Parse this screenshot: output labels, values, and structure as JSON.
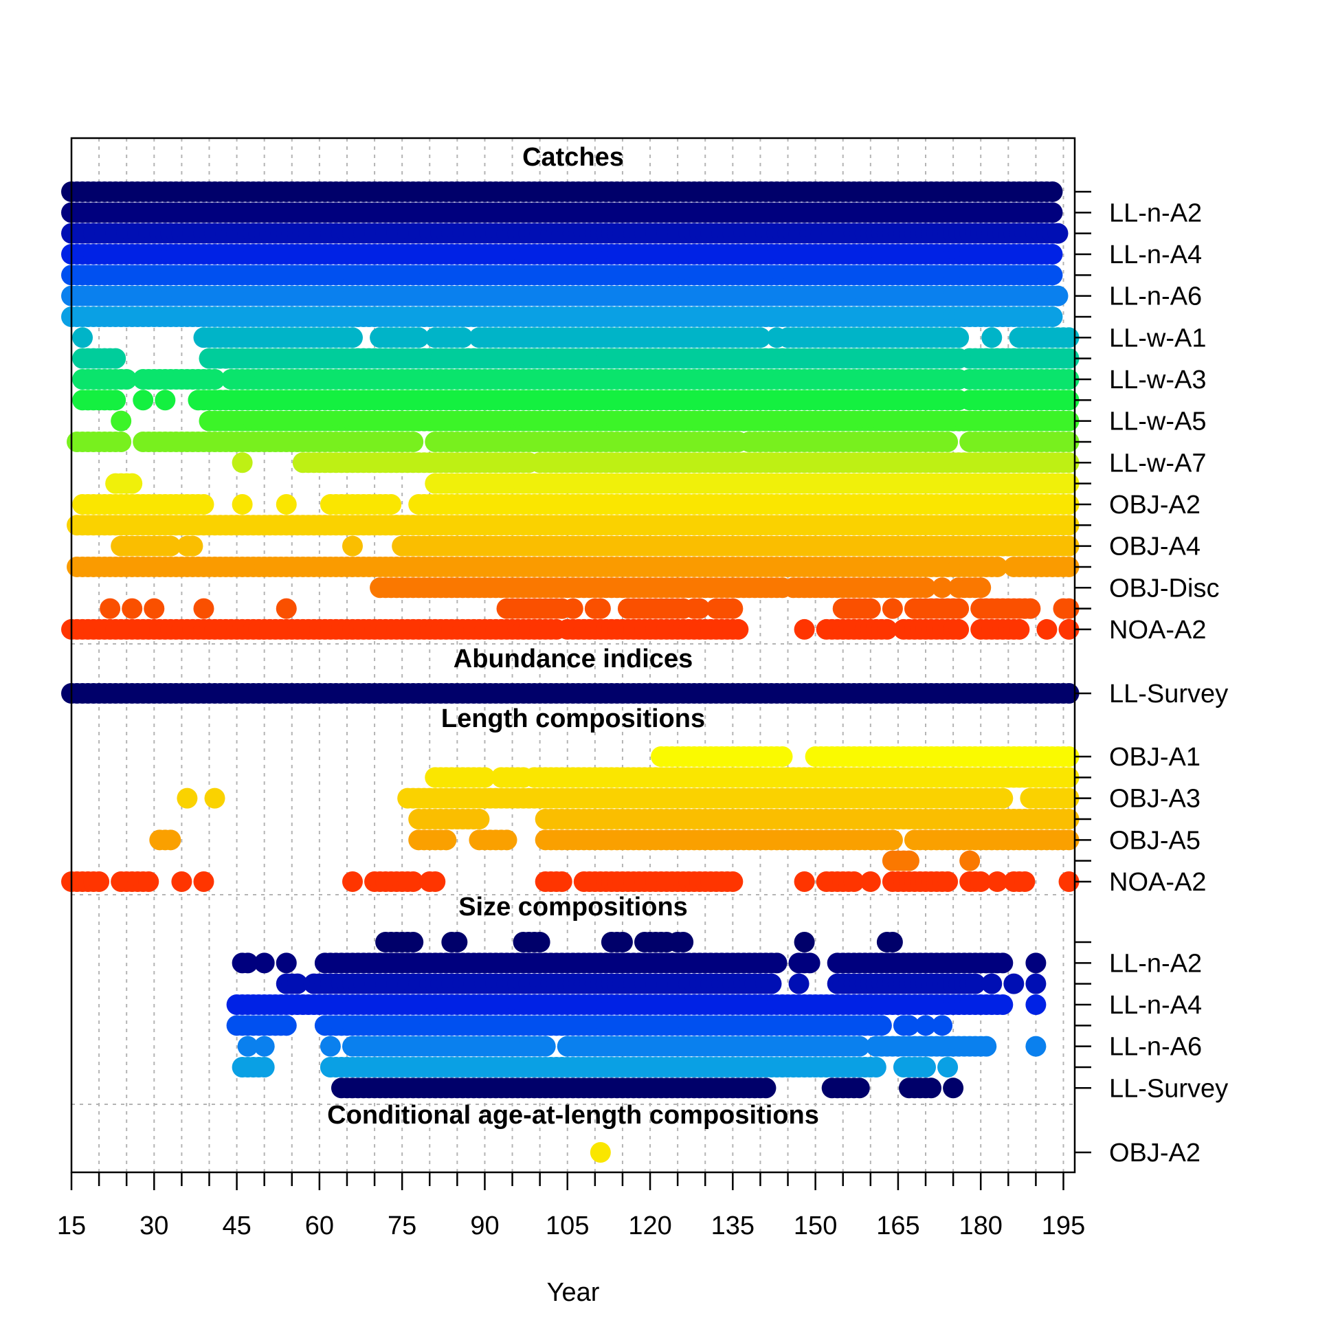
{
  "chart_data": {
    "type": "scatter",
    "xlabel": "Year",
    "xlim": [
      15,
      196
    ],
    "x_ticks": [
      15,
      30,
      45,
      60,
      75,
      90,
      105,
      120,
      135,
      150,
      165,
      180,
      195
    ],
    "sections": [
      {
        "title": "Catches",
        "rows": [
          {
            "label": "",
            "color": "#00006a",
            "ranges": [
              [
                15,
                193
              ]
            ]
          },
          {
            "label": "LL-n-A2",
            "color": "#00007e",
            "ranges": [
              [
                15,
                193
              ]
            ]
          },
          {
            "label": "",
            "color": "#000fb4",
            "ranges": [
              [
                15,
                194
              ]
            ]
          },
          {
            "label": "LL-n-A4",
            "color": "#0022e5",
            "ranges": [
              [
                15,
                193
              ]
            ]
          },
          {
            "label": "",
            "color": "#0050f0",
            "ranges": [
              [
                15,
                193
              ]
            ]
          },
          {
            "label": "LL-n-A6",
            "color": "#0a80ee",
            "ranges": [
              [
                15,
                194
              ]
            ]
          },
          {
            "label": "",
            "color": "#0aa0e4",
            "ranges": [
              [
                15,
                193
              ]
            ]
          },
          {
            "label": "LL-w-A1",
            "color": "#00b4c8",
            "ranges": [
              [
                17,
                17
              ],
              [
                39,
                66
              ],
              [
                71,
                78
              ],
              [
                81,
                86
              ],
              [
                89,
                140
              ],
              [
                143,
                143
              ],
              [
                145,
                176
              ],
              [
                182,
                182
              ],
              [
                187,
                196
              ]
            ]
          },
          {
            "label": "",
            "color": "#00cd9b",
            "ranges": [
              [
                17,
                23
              ],
              [
                40,
                176
              ],
              [
                178,
                196
              ]
            ]
          },
          {
            "label": "LL-w-A3",
            "color": "#0ae46c",
            "ranges": [
              [
                17,
                25
              ],
              [
                28,
                41
              ],
              [
                44,
                176
              ],
              [
                178,
                196
              ]
            ]
          },
          {
            "label": "",
            "color": "#14f040",
            "ranges": [
              [
                17,
                23
              ],
              [
                28,
                28
              ],
              [
                32,
                32
              ],
              [
                38,
                176
              ],
              [
                178,
                196
              ]
            ]
          },
          {
            "label": "LL-w-A5",
            "color": "#3cf428",
            "ranges": [
              [
                24,
                24
              ],
              [
                40,
                196
              ]
            ]
          },
          {
            "label": "",
            "color": "#78f01e",
            "ranges": [
              [
                16,
                24
              ],
              [
                28,
                77
              ],
              [
                81,
                136
              ],
              [
                138,
                174
              ],
              [
                178,
                196
              ]
            ]
          },
          {
            "label": "LL-w-A7",
            "color": "#bef014",
            "ranges": [
              [
                46,
                46
              ],
              [
                57,
                98
              ],
              [
                100,
                196
              ]
            ]
          },
          {
            "label": "",
            "color": "#f0f00a",
            "ranges": [
              [
                23,
                26
              ],
              [
                81,
                196
              ]
            ]
          },
          {
            "label": "OBJ-A2",
            "color": "#fae600",
            "ranges": [
              [
                17,
                39
              ],
              [
                46,
                46
              ],
              [
                54,
                54
              ],
              [
                62,
                73
              ],
              [
                78,
                196
              ]
            ]
          },
          {
            "label": "",
            "color": "#fad200",
            "ranges": [
              [
                16,
                196
              ]
            ]
          },
          {
            "label": "OBJ-A4",
            "color": "#fabe00",
            "ranges": [
              [
                24,
                33
              ],
              [
                36,
                37
              ],
              [
                66,
                66
              ],
              [
                75,
                196
              ]
            ]
          },
          {
            "label": "",
            "color": "#fa9b00",
            "ranges": [
              [
                16,
                183
              ],
              [
                186,
                196
              ]
            ]
          },
          {
            "label": "OBJ-Disc",
            "color": "#fa7800",
            "ranges": [
              [
                71,
                144
              ],
              [
                146,
                170
              ],
              [
                173,
                173
              ],
              [
                176,
                180
              ]
            ]
          },
          {
            "label": "",
            "color": "#fa5000",
            "ranges": [
              [
                22,
                22
              ],
              [
                26,
                26
              ],
              [
                30,
                30
              ],
              [
                39,
                39
              ],
              [
                54,
                54
              ],
              [
                94,
                104
              ],
              [
                106,
                106
              ],
              [
                110,
                111
              ],
              [
                116,
                126
              ],
              [
                128,
                129
              ],
              [
                132,
                135
              ],
              [
                155,
                160
              ],
              [
                164,
                164
              ],
              [
                168,
                176
              ],
              [
                180,
                189
              ],
              [
                195,
                196
              ]
            ]
          },
          {
            "label": "NOA-A2",
            "color": "#ff3500",
            "ranges": [
              [
                15,
                103
              ],
              [
                105,
                136
              ],
              [
                148,
                148
              ],
              [
                152,
                163
              ],
              [
                166,
                176
              ],
              [
                180,
                187
              ],
              [
                192,
                192
              ],
              [
                196,
                196
              ]
            ]
          }
        ]
      },
      {
        "title": "Abundance indices",
        "rows": [
          {
            "label": "LL-Survey",
            "color": "#00006a",
            "ranges": [
              [
                15,
                196
              ]
            ]
          }
        ]
      },
      {
        "title": "Length compositions",
        "rows": [
          {
            "label": "OBJ-A1",
            "color": "#fafa00",
            "ranges": [
              [
                122,
                144
              ],
              [
                150,
                196
              ]
            ]
          },
          {
            "label": "",
            "color": "#fae600",
            "ranges": [
              [
                81,
                90
              ],
              [
                93,
                97
              ],
              [
                99,
                196
              ]
            ]
          },
          {
            "label": "OBJ-A3",
            "color": "#fad200",
            "ranges": [
              [
                36,
                36
              ],
              [
                41,
                41
              ],
              [
                76,
                184
              ],
              [
                189,
                196
              ]
            ]
          },
          {
            "label": "",
            "color": "#fabe00",
            "ranges": [
              [
                78,
                89
              ],
              [
                101,
                196
              ]
            ]
          },
          {
            "label": "OBJ-A5",
            "color": "#faa000",
            "ranges": [
              [
                31,
                33
              ],
              [
                78,
                83
              ],
              [
                89,
                94
              ],
              [
                101,
                164
              ],
              [
                168,
                196
              ]
            ]
          },
          {
            "label": "",
            "color": "#fa7800",
            "ranges": [
              [
                164,
                167
              ],
              [
                178,
                178
              ]
            ]
          },
          {
            "label": "NOA-A2",
            "color": "#ff3500",
            "ranges": [
              [
                15,
                20
              ],
              [
                24,
                29
              ],
              [
                35,
                35
              ],
              [
                39,
                39
              ],
              [
                66,
                66
              ],
              [
                70,
                77
              ],
              [
                80,
                81
              ],
              [
                101,
                104
              ],
              [
                108,
                135
              ],
              [
                148,
                148
              ],
              [
                152,
                157
              ],
              [
                160,
                160
              ],
              [
                164,
                174
              ],
              [
                178,
                180
              ],
              [
                183,
                183
              ],
              [
                186,
                188
              ],
              [
                196,
                196
              ]
            ]
          }
        ]
      },
      {
        "title": "Size compositions",
        "rows": [
          {
            "label": "",
            "color": "#00006a",
            "ranges": [
              [
                72,
                77
              ],
              [
                84,
                85
              ],
              [
                97,
                100
              ],
              [
                113,
                115
              ],
              [
                119,
                123
              ],
              [
                125,
                126
              ],
              [
                148,
                148
              ],
              [
                163,
                164
              ]
            ]
          },
          {
            "label": "LL-n-A2",
            "color": "#00007e",
            "ranges": [
              [
                46,
                47
              ],
              [
                50,
                50
              ],
              [
                54,
                54
              ],
              [
                61,
                143
              ],
              [
                147,
                149
              ],
              [
                154,
                184
              ],
              [
                190,
                190
              ]
            ]
          },
          {
            "label": "",
            "color": "#000fb4",
            "ranges": [
              [
                54,
                56
              ],
              [
                59,
                142
              ],
              [
                147,
                147
              ],
              [
                154,
                179
              ],
              [
                182,
                182
              ],
              [
                186,
                186
              ],
              [
                190,
                190
              ]
            ]
          },
          {
            "label": "LL-n-A4",
            "color": "#0022e5",
            "ranges": [
              [
                45,
                184
              ],
              [
                190,
                190
              ]
            ]
          },
          {
            "label": "",
            "color": "#0050f0",
            "ranges": [
              [
                45,
                54
              ],
              [
                61,
                162
              ],
              [
                166,
                167
              ],
              [
                170,
                170
              ],
              [
                173,
                173
              ]
            ]
          },
          {
            "label": "LL-n-A6",
            "color": "#0a80ee",
            "ranges": [
              [
                47,
                47
              ],
              [
                50,
                50
              ],
              [
                62,
                62
              ],
              [
                66,
                101
              ],
              [
                105,
                158
              ],
              [
                161,
                181
              ],
              [
                190,
                190
              ]
            ]
          },
          {
            "label": "",
            "color": "#0aa0e4",
            "ranges": [
              [
                46,
                50
              ],
              [
                62,
                161
              ],
              [
                166,
                170
              ],
              [
                174,
                174
              ]
            ]
          },
          {
            "label": "LL-Survey",
            "color": "#00006a",
            "ranges": [
              [
                64,
                141
              ],
              [
                153,
                158
              ],
              [
                167,
                171
              ],
              [
                175,
                175
              ]
            ]
          }
        ]
      },
      {
        "title": "Conditional age-at-length compositions",
        "rows": [
          {
            "label": "OBJ-A2",
            "color": "#fae600",
            "ranges": [
              [
                111,
                111
              ]
            ]
          }
        ]
      }
    ]
  }
}
